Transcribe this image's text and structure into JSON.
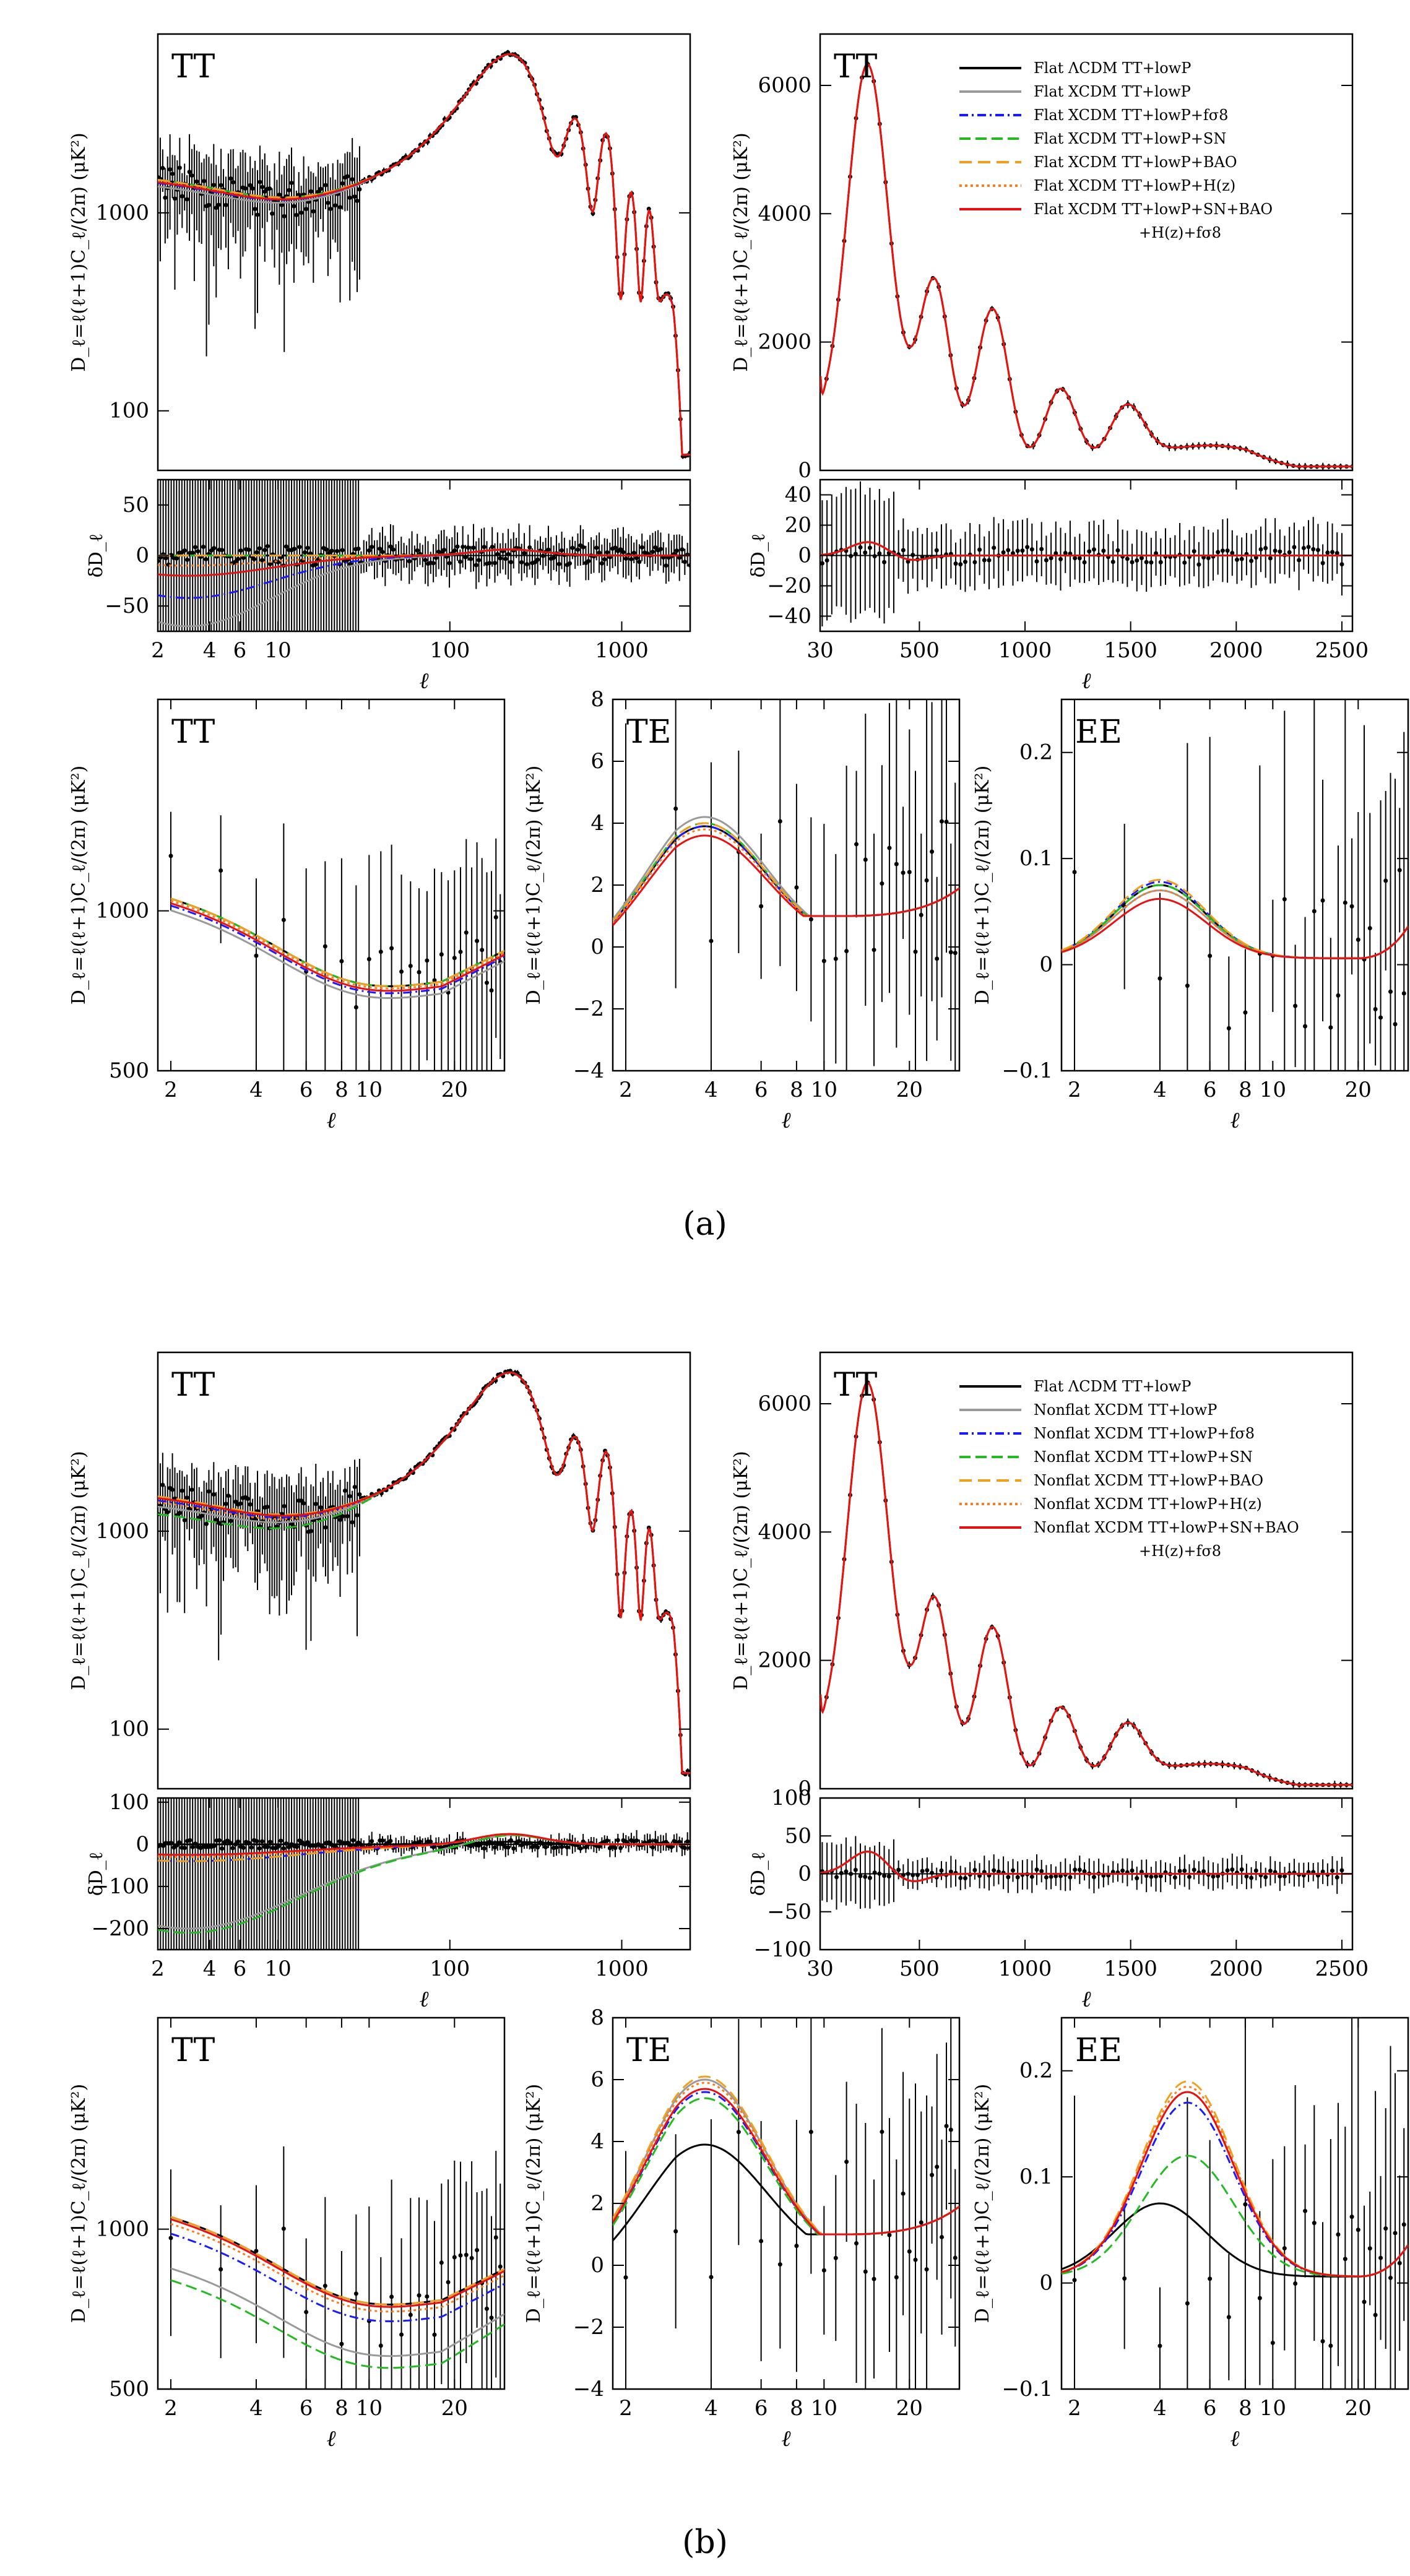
{
  "figure": {
    "caption_a": "(a)",
    "caption_b": "(b)"
  },
  "colors": {
    "lcdm": "#000000",
    "tt_lowp": "#9a9a9a",
    "fs8": "#1a1aff",
    "sn": "#22bb22",
    "bao": "#f0a020",
    "hz": "#ff7a1a",
    "all": "#e81010"
  },
  "legend_a": [
    "Flat ΛCDM TT+lowP",
    "Flat XCDM TT+lowP",
    "Flat XCDM TT+lowP+fσ8",
    "Flat XCDM TT+lowP+SN",
    "Flat XCDM TT+lowP+BAO",
    "Flat XCDM TT+lowP+H(z)",
    "Flat XCDM TT+lowP+SN+BAO",
    "+H(z)+fσ8"
  ],
  "legend_b": [
    "Flat ΛCDM TT+lowP",
    "Nonflat XCDM TT+lowP",
    "Nonflat XCDM TT+lowP+fσ8",
    "Nonflat XCDM TT+lowP+SN",
    "Nonflat XCDM TT+lowP+BAO",
    "Nonflat XCDM TT+lowP+H(z)",
    "Nonflat XCDM TT+lowP+SN+BAO",
    "+H(z)+fσ8"
  ],
  "labels": {
    "tt": "TT",
    "te": "TE",
    "ee": "EE",
    "ell": "ℓ",
    "ylabel": "D_ℓ=ℓ(ℓ+1)C_ℓ/(2π) (μK²)",
    "dlabel": "δD_ℓ"
  },
  "chart_data": [
    {
      "id": "a_tt_log",
      "type": "line",
      "title": "TT",
      "xscale": "log",
      "yscale": "log",
      "xlim": [
        2,
        2500
      ],
      "ylim": [
        50,
        8000
      ],
      "yticks": [
        100,
        1000
      ],
      "ytick_labels": [
        "100",
        "1000"
      ]
    },
    {
      "id": "a_tt_lin",
      "type": "line",
      "title": "TT",
      "xlim": [
        0,
        2500
      ],
      "ylim": [
        0,
        6800
      ],
      "yticks": [
        0,
        2000,
        4000,
        6000
      ],
      "ytick_labels": [
        "0",
        "2000",
        "4000",
        "6000"
      ]
    },
    {
      "id": "a_res_log",
      "type": "line",
      "xscale": "log",
      "xlim": [
        2,
        2500
      ],
      "ylim": [
        -75,
        75
      ],
      "yticks": [
        -50,
        0,
        50
      ],
      "ytick_labels": [
        "−50",
        "0",
        "50"
      ],
      "xticks": [
        2,
        4,
        6,
        10,
        100,
        1000
      ],
      "xtick_labels": [
        "2",
        "4",
        "6",
        "10",
        "100",
        "1000"
      ],
      "xlabel": "ℓ"
    },
    {
      "id": "a_res_lin",
      "type": "line",
      "xlim": [
        30,
        2550
      ],
      "ylim": [
        -50,
        50
      ],
      "yticks": [
        -40,
        -20,
        0,
        20,
        40
      ],
      "ytick_labels": [
        "−40",
        "−20",
        "0",
        "20",
        "40"
      ],
      "xticks": [
        30,
        500,
        1000,
        1500,
        2000,
        2500
      ],
      "xtick_labels": [
        "30",
        "500",
        "1000",
        "1500",
        "2000",
        "2500"
      ],
      "xlabel": "ℓ"
    },
    {
      "id": "a_lowtt",
      "type": "line",
      "title": "TT",
      "xscale": "log",
      "yscale": "log",
      "xlim": [
        1.8,
        30
      ],
      "ylim": [
        500,
        2500
      ],
      "yticks": [
        500,
        1000
      ],
      "ytick_labels": [
        "500",
        "1000"
      ],
      "xticks": [
        2,
        4,
        6,
        8,
        10,
        20
      ],
      "xtick_labels": [
        "2",
        "4",
        "6",
        "8",
        "10",
        "20"
      ],
      "xlabel": "ℓ"
    },
    {
      "id": "a_lowte",
      "type": "line",
      "title": "TE",
      "xscale": "log",
      "xlim": [
        1.8,
        30
      ],
      "ylim": [
        -4,
        8
      ],
      "yticks": [
        -4,
        -2,
        0,
        2,
        4,
        6,
        8
      ],
      "ytick_labels": [
        "−4",
        "−2",
        "0",
        "2",
        "4",
        "6",
        "8"
      ],
      "xticks": [
        2,
        4,
        6,
        8,
        10,
        20
      ],
      "xtick_labels": [
        "2",
        "4",
        "6",
        "8",
        "10",
        "20"
      ],
      "xlabel": "ℓ"
    },
    {
      "id": "a_lowee",
      "type": "line",
      "title": "EE",
      "xscale": "log",
      "xlim": [
        1.8,
        30
      ],
      "ylim": [
        -0.1,
        0.25
      ],
      "yticks": [
        -0.1,
        0,
        0.1,
        0.2
      ],
      "ytick_labels": [
        "−0.1",
        "0",
        "0.1",
        "0.2"
      ],
      "xticks": [
        2,
        4,
        6,
        8,
        10,
        20
      ],
      "xtick_labels": [
        "2",
        "4",
        "6",
        "8",
        "10",
        "20"
      ],
      "xlabel": "ℓ"
    },
    {
      "id": "b_tt_log",
      "type": "line",
      "title": "TT",
      "xscale": "log",
      "yscale": "log",
      "xlim": [
        2,
        2500
      ],
      "ylim": [
        50,
        8000
      ],
      "yticks": [
        100,
        1000
      ],
      "ytick_labels": [
        "100",
        "1000"
      ]
    },
    {
      "id": "b_tt_lin",
      "type": "line",
      "title": "TT",
      "xlim": [
        0,
        2500
      ],
      "ylim": [
        0,
        6800
      ],
      "yticks": [
        0,
        2000,
        4000,
        6000
      ],
      "ytick_labels": [
        "0",
        "2000",
        "4000",
        "6000"
      ]
    },
    {
      "id": "b_res_log",
      "type": "line",
      "xscale": "log",
      "xlim": [
        2,
        2500
      ],
      "ylim": [
        -250,
        110
      ],
      "yticks": [
        -200,
        -100,
        0,
        100
      ],
      "ytick_labels": [
        "−200",
        "−100",
        "0",
        "100"
      ],
      "xticks": [
        2,
        4,
        6,
        10,
        100,
        1000
      ],
      "xtick_labels": [
        "2",
        "4",
        "6",
        "10",
        "100",
        "1000"
      ],
      "xlabel": "ℓ"
    },
    {
      "id": "b_res_lin",
      "type": "line",
      "xlim": [
        30,
        2550
      ],
      "ylim": [
        -100,
        100
      ],
      "yticks": [
        -100,
        -50,
        0,
        50,
        100
      ],
      "ytick_labels": [
        "−100",
        "−50",
        "0",
        "50",
        "100"
      ],
      "xticks": [
        30,
        500,
        1000,
        1500,
        2000,
        2500
      ],
      "xtick_labels": [
        "30",
        "500",
        "1000",
        "1500",
        "2000",
        "2500"
      ],
      "xlabel": "ℓ"
    },
    {
      "id": "b_lowtt",
      "type": "line",
      "title": "TT",
      "xscale": "log",
      "yscale": "log",
      "xlim": [
        1.8,
        30
      ],
      "ylim": [
        500,
        2500
      ],
      "yticks": [
        500,
        1000
      ],
      "ytick_labels": [
        "500",
        "1000"
      ],
      "xticks": [
        2,
        4,
        6,
        8,
        10,
        20
      ],
      "xtick_labels": [
        "2",
        "4",
        "6",
        "8",
        "10",
        "20"
      ],
      "xlabel": "ℓ"
    },
    {
      "id": "b_lowte",
      "type": "line",
      "title": "TE",
      "xscale": "log",
      "xlim": [
        1.8,
        30
      ],
      "ylim": [
        -4,
        8
      ],
      "yticks": [
        -4,
        -2,
        0,
        2,
        4,
        6,
        8
      ],
      "ytick_labels": [
        "−4",
        "−2",
        "0",
        "2",
        "4",
        "6",
        "8"
      ],
      "xticks": [
        2,
        4,
        6,
        8,
        10,
        20
      ],
      "xtick_labels": [
        "2",
        "4",
        "6",
        "8",
        "10",
        "20"
      ],
      "xlabel": "ℓ"
    },
    {
      "id": "b_lowee",
      "type": "line",
      "title": "EE",
      "xscale": "log",
      "xlim": [
        1.8,
        30
      ],
      "ylim": [
        -0.1,
        0.25
      ],
      "yticks": [
        -0.1,
        0,
        0.1,
        0.2
      ],
      "ytick_labels": [
        "−0.1",
        "0",
        "0.1",
        "0.2"
      ],
      "xticks": [
        2,
        4,
        6,
        8,
        10,
        20
      ],
      "xtick_labels": [
        "2",
        "4",
        "6",
        "8",
        "10",
        "20"
      ],
      "xlabel": "ℓ"
    }
  ]
}
